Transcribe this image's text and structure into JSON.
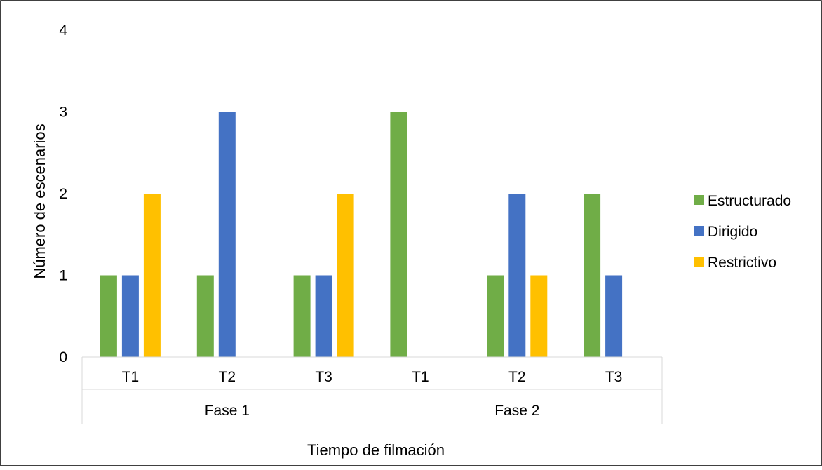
{
  "chart_data": {
    "type": "bar",
    "groups": [
      {
        "name": "Fase 1",
        "categories": [
          "T1",
          "T2",
          "T3"
        ]
      },
      {
        "name": "Fase 2",
        "categories": [
          "T1",
          "T2",
          "T3"
        ]
      }
    ],
    "series": [
      {
        "name": "Estructurado",
        "color": "#70ad47",
        "values": [
          1,
          1,
          1,
          3,
          1,
          2
        ]
      },
      {
        "name": "Dirigido",
        "color": "#4472c4",
        "values": [
          1,
          3,
          1,
          0,
          2,
          1
        ]
      },
      {
        "name": "Restrictivo",
        "color": "#ffc000",
        "values": [
          2,
          0,
          2,
          0,
          1,
          0
        ]
      }
    ],
    "xlabel": "Tiempo de filmación",
    "ylabel": "Número de escenarios",
    "ylim": [
      0,
      4
    ],
    "yticks": [
      "0",
      "1",
      "2",
      "3",
      "4"
    ],
    "grid": false,
    "legend_position": "right"
  }
}
